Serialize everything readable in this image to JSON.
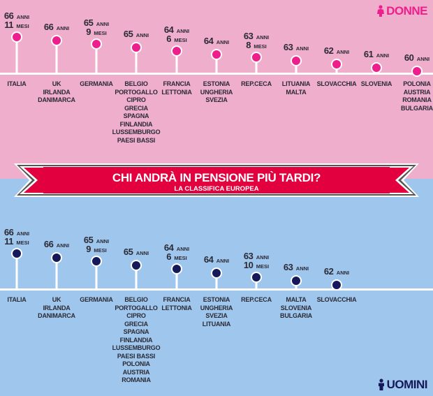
{
  "banner": {
    "title": "CHI ANDRÀ IN PENSIONE PIÙ TARDI?",
    "subtitle": "LA CLASSIFICA EUROPEA"
  },
  "legend": {
    "women": "DONNE",
    "men": "UOMINI",
    "women_icon": "female-figure-icon",
    "men_icon": "male-figure-icon"
  },
  "colors": {
    "women_bg": "#efaecb",
    "men_bg": "#9fc6ec",
    "women_dot": "#ee1f8d",
    "men_dot": "#15195a",
    "banner": "#e2003f"
  },
  "chart_data": [
    {
      "type": "lollipop",
      "title": "DONNE",
      "unit": "retirement age",
      "categories": [
        [
          "ITALIA"
        ],
        [
          "UK",
          "IRLANDA",
          "DANIMARCA"
        ],
        [
          "GERMANIA"
        ],
        [
          "BELGIO",
          "PORTOGALLO",
          "CIPRO",
          "GRECIA",
          "SPAGNA",
          "FINLANDIA",
          "LUSSEMBURGO",
          "PAESI BASSI"
        ],
        [
          "FRANCIA",
          "LETTONIA"
        ],
        [
          "ESTONIA",
          "UNGHERIA",
          "SVEZIA"
        ],
        [
          "REP.CECA"
        ],
        [
          "LITUANIA",
          "MALTA"
        ],
        [
          "SLOVACCHIA"
        ],
        [
          "SLOVENIA"
        ],
        [
          "POLONIA",
          "AUSTRIA",
          "ROMANIA",
          "BULGARIA"
        ]
      ],
      "labels": [
        {
          "years": "66",
          "months": "11"
        },
        {
          "years": "66",
          "months": null
        },
        {
          "years": "65",
          "months": "9"
        },
        {
          "years": "65",
          "months": null
        },
        {
          "years": "64",
          "months": "6"
        },
        {
          "years": "64",
          "months": null
        },
        {
          "years": "63",
          "months": "8"
        },
        {
          "years": "63",
          "months": null
        },
        {
          "years": "62",
          "months": null
        },
        {
          "years": "61",
          "months": null
        },
        {
          "years": "60",
          "months": null
        }
      ],
      "values": [
        66.92,
        66,
        65.75,
        65,
        64.5,
        64,
        63.67,
        63,
        62,
        61,
        60
      ]
    },
    {
      "type": "lollipop",
      "title": "UOMINI",
      "unit": "retirement age",
      "categories": [
        [
          "ITALIA"
        ],
        [
          "UK",
          "IRLANDA",
          "DANIMARCA"
        ],
        [
          "GERMANIA"
        ],
        [
          "BELGIO",
          "PORTOGALLO",
          "CIPRO",
          "GRECIA",
          "SPAGNA",
          "FINLANDIA",
          "LUSSEMBURGO",
          "PAESI BASSI",
          "POLONIA",
          "AUSTRIA",
          "ROMANIA"
        ],
        [
          "FRANCIA",
          "LETTONIA"
        ],
        [
          "ESTONIA",
          "UNGHERIA",
          "SVEZIA",
          "LITUANIA"
        ],
        [
          "REP.CECA"
        ],
        [
          "MALTA",
          "SLOVENIA",
          "BULGARIA"
        ],
        [
          "SLOVACCHIA"
        ]
      ],
      "labels": [
        {
          "years": "66",
          "months": "11"
        },
        {
          "years": "66",
          "months": null
        },
        {
          "years": "65",
          "months": "9"
        },
        {
          "years": "65",
          "months": null
        },
        {
          "years": "64",
          "months": "6"
        },
        {
          "years": "64",
          "months": null
        },
        {
          "years": "63",
          "months": "10"
        },
        {
          "years": "63",
          "months": null
        },
        {
          "years": "62",
          "months": null
        }
      ],
      "values": [
        66.92,
        66,
        65.75,
        65,
        64.5,
        64,
        63.83,
        63,
        62
      ]
    }
  ],
  "units": {
    "years": "ANNI",
    "months": "MESI"
  }
}
